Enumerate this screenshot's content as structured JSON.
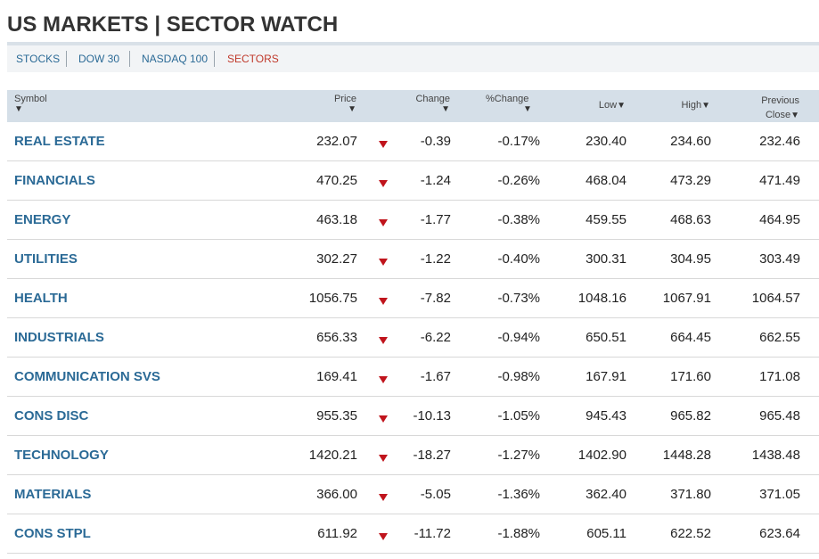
{
  "title": "US MARKETS | SECTOR WATCH",
  "nav": [
    {
      "label": "STOCKS",
      "active": false
    },
    {
      "label": "DOW 30",
      "active": false
    },
    {
      "label": "NASDAQ 100",
      "active": false
    },
    {
      "label": "SECTORS",
      "active": true
    }
  ],
  "columns": {
    "symbol": "Symbol",
    "price": "Price",
    "change": "Change",
    "pct_change": "%Change",
    "low": "Low",
    "high": "High",
    "prev_line1": "Previous",
    "prev_line2": "Close",
    "sort_arrow": "▼"
  },
  "colors": {
    "link": "#2b6a96",
    "active_nav": "#c0392b",
    "down_arrow": "#c0141c",
    "header_bg": "#d5dfe8"
  },
  "rows": [
    {
      "symbol": "REAL ESTATE",
      "price": "232.07",
      "direction": "down",
      "change": "-0.39",
      "pct": "-0.17%",
      "low": "230.40",
      "high": "234.60",
      "prev": "232.46"
    },
    {
      "symbol": "FINANCIALS",
      "price": "470.25",
      "direction": "down",
      "change": "-1.24",
      "pct": "-0.26%",
      "low": "468.04",
      "high": "473.29",
      "prev": "471.49"
    },
    {
      "symbol": "ENERGY",
      "price": "463.18",
      "direction": "down",
      "change": "-1.77",
      "pct": "-0.38%",
      "low": "459.55",
      "high": "468.63",
      "prev": "464.95"
    },
    {
      "symbol": "UTILITIES",
      "price": "302.27",
      "direction": "down",
      "change": "-1.22",
      "pct": "-0.40%",
      "low": "300.31",
      "high": "304.95",
      "prev": "303.49"
    },
    {
      "symbol": "HEALTH",
      "price": "1056.75",
      "direction": "down",
      "change": "-7.82",
      "pct": "-0.73%",
      "low": "1048.16",
      "high": "1067.91",
      "prev": "1064.57"
    },
    {
      "symbol": "INDUSTRIALS",
      "price": "656.33",
      "direction": "down",
      "change": "-6.22",
      "pct": "-0.94%",
      "low": "650.51",
      "high": "664.45",
      "prev": "662.55"
    },
    {
      "symbol": "COMMUNICATION SVS",
      "price": "169.41",
      "direction": "down",
      "change": "-1.67",
      "pct": "-0.98%",
      "low": "167.91",
      "high": "171.60",
      "prev": "171.08"
    },
    {
      "symbol": "CONS DISC",
      "price": "955.35",
      "direction": "down",
      "change": "-10.13",
      "pct": "-1.05%",
      "low": "945.43",
      "high": "965.82",
      "prev": "965.48"
    },
    {
      "symbol": "TECHNOLOGY",
      "price": "1420.21",
      "direction": "down",
      "change": "-18.27",
      "pct": "-1.27%",
      "low": "1402.90",
      "high": "1448.28",
      "prev": "1438.48"
    },
    {
      "symbol": "MATERIALS",
      "price": "366.00",
      "direction": "down",
      "change": "-5.05",
      "pct": "-1.36%",
      "low": "362.40",
      "high": "371.80",
      "prev": "371.05"
    },
    {
      "symbol": "CONS STPL",
      "price": "611.92",
      "direction": "down",
      "change": "-11.72",
      "pct": "-1.88%",
      "low": "605.11",
      "high": "622.52",
      "prev": "623.64"
    }
  ]
}
